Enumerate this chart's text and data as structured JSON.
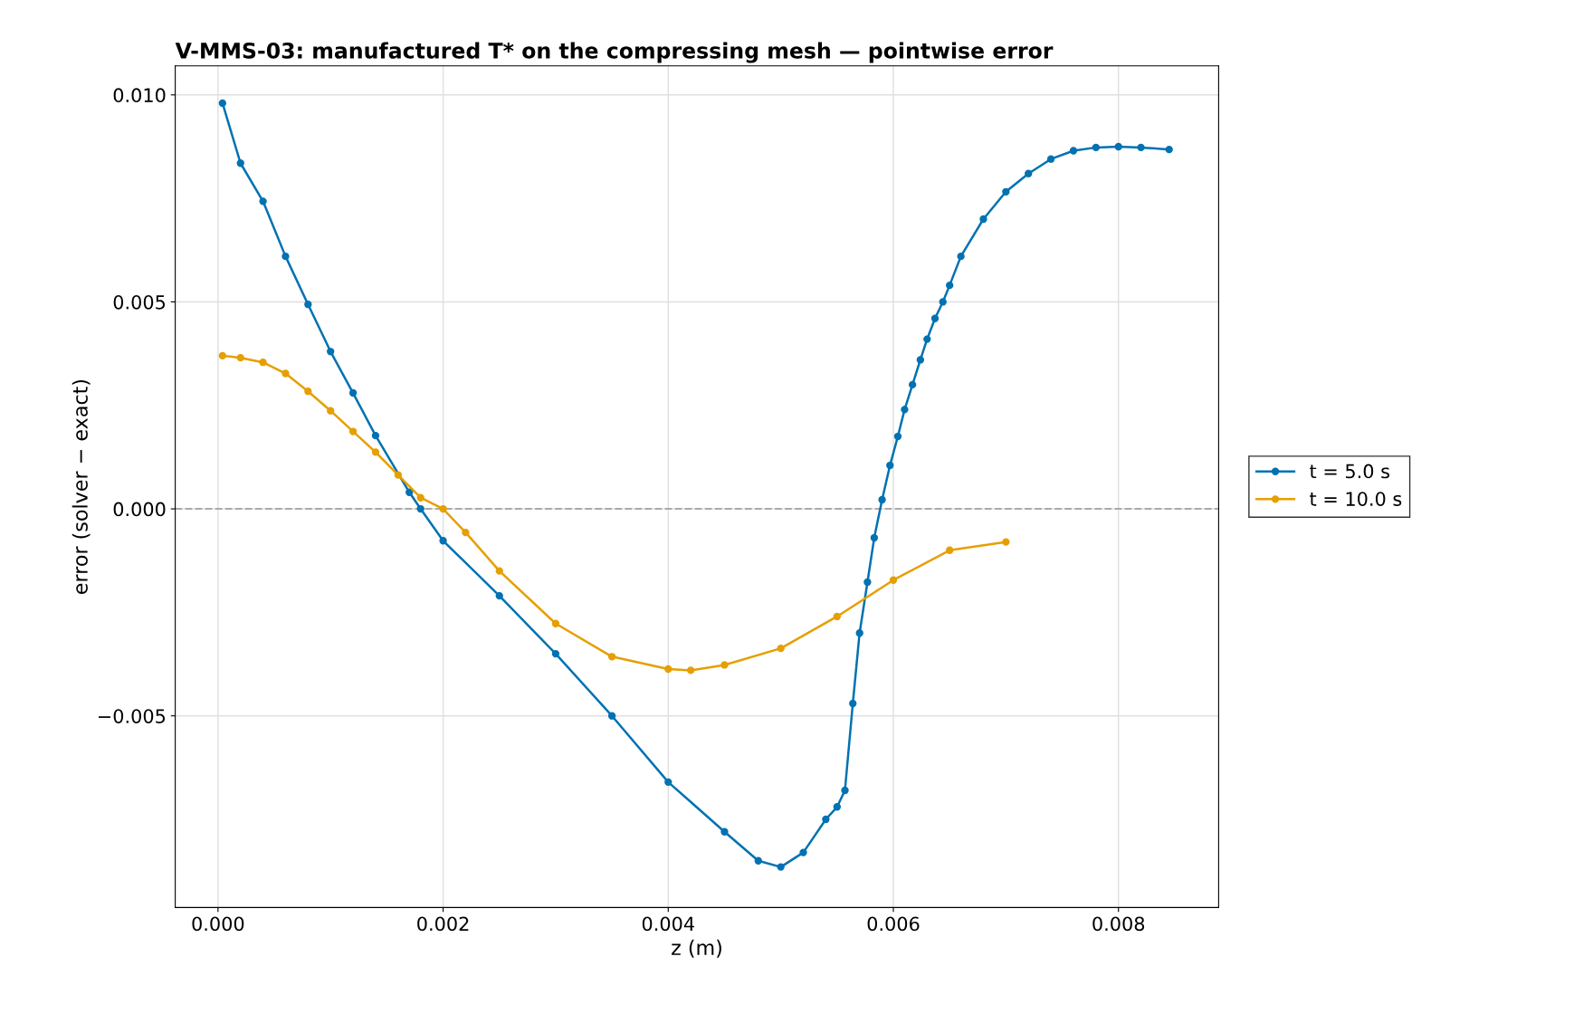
{
  "chart_data": {
    "type": "line",
    "title": "V-MMS-03: manufactured T* on the compressing mesh — pointwise error",
    "xlabel": "z (m)",
    "ylabel": "error (solver − exact)",
    "xlim": [
      -0.00038,
      0.00889
    ],
    "ylim": [
      -0.00963,
      0.0107
    ],
    "xticks": [
      {
        "value": 0,
        "label": "0.000"
      },
      0.002,
      0.004,
      0.006,
      0.008
    ],
    "yticks": [
      {
        "value": -0.005,
        "label": "−0.005"
      },
      {
        "value": 0,
        "label": "0.000"
      },
      0.005,
      {
        "value": 0.01,
        "label": "0.010"
      }
    ],
    "grid": true,
    "legend": "right",
    "marker": "circle",
    "line_style": "solid",
    "ref_lines": [
      {
        "axis": "y",
        "value": 0,
        "color": "#aaaaaa",
        "line_style": "dashed"
      }
    ],
    "series": [
      {
        "name": "t = 5.0 s",
        "color": "#0072b2",
        "x": [
          4e-05,
          0.0002,
          0.0004,
          0.0006,
          0.0008,
          0.001,
          0.0012,
          0.0014,
          0.0017,
          0.0018,
          0.002,
          0.0025,
          0.003,
          0.0035,
          0.004,
          0.0045,
          0.0048,
          0.005,
          0.0052,
          0.0054,
          0.0055,
          0.00557,
          0.00564,
          0.0057,
          0.00577,
          0.00583,
          0.0059,
          0.00597,
          0.00604,
          0.0061,
          0.00617,
          0.00624,
          0.0063,
          0.00637,
          0.00644,
          0.0065,
          0.0066,
          0.0068,
          0.007,
          0.0072,
          0.0074,
          0.0076,
          0.0078,
          0.008,
          0.0082,
          0.00845
        ],
        "values": [
          0.0098,
          0.00835,
          0.00743,
          0.0061,
          0.00494,
          0.0038,
          0.0028,
          0.00177,
          0.0004,
          0.0,
          -0.00077,
          -0.0021,
          -0.0035,
          -0.005,
          -0.0066,
          -0.0078,
          -0.0085,
          -0.00865,
          -0.0083,
          -0.0075,
          -0.0072,
          -0.0068,
          -0.0047,
          -0.003,
          -0.00177,
          -0.0007,
          0.00022,
          0.00105,
          0.00175,
          0.0024,
          0.003,
          0.0036,
          0.0041,
          0.0046,
          0.005,
          0.0054,
          0.0061,
          0.007,
          0.00766,
          0.0081,
          0.00845,
          0.00865,
          0.00873,
          0.00875,
          0.00873,
          0.00868
        ]
      },
      {
        "name": "t = 10.0 s",
        "color": "#e69f00",
        "x": [
          4e-05,
          0.0002,
          0.0004,
          0.0006,
          0.0008,
          0.001,
          0.0012,
          0.0014,
          0.0016,
          0.0018,
          0.002,
          0.0022,
          0.0025,
          0.003,
          0.0035,
          0.004,
          0.0042,
          0.0045,
          0.005,
          0.0055,
          0.006,
          0.0065,
          0.007
        ],
        "values": [
          0.0037,
          0.00365,
          0.00354,
          0.00327,
          0.00284,
          0.00237,
          0.00187,
          0.00137,
          0.00082,
          0.00027,
          0.0,
          -0.00057,
          -0.0015,
          -0.00277,
          -0.00357,
          -0.00387,
          -0.0039,
          -0.00377,
          -0.00337,
          -0.0026,
          -0.00172,
          -0.001,
          -0.0008
        ]
      }
    ]
  }
}
